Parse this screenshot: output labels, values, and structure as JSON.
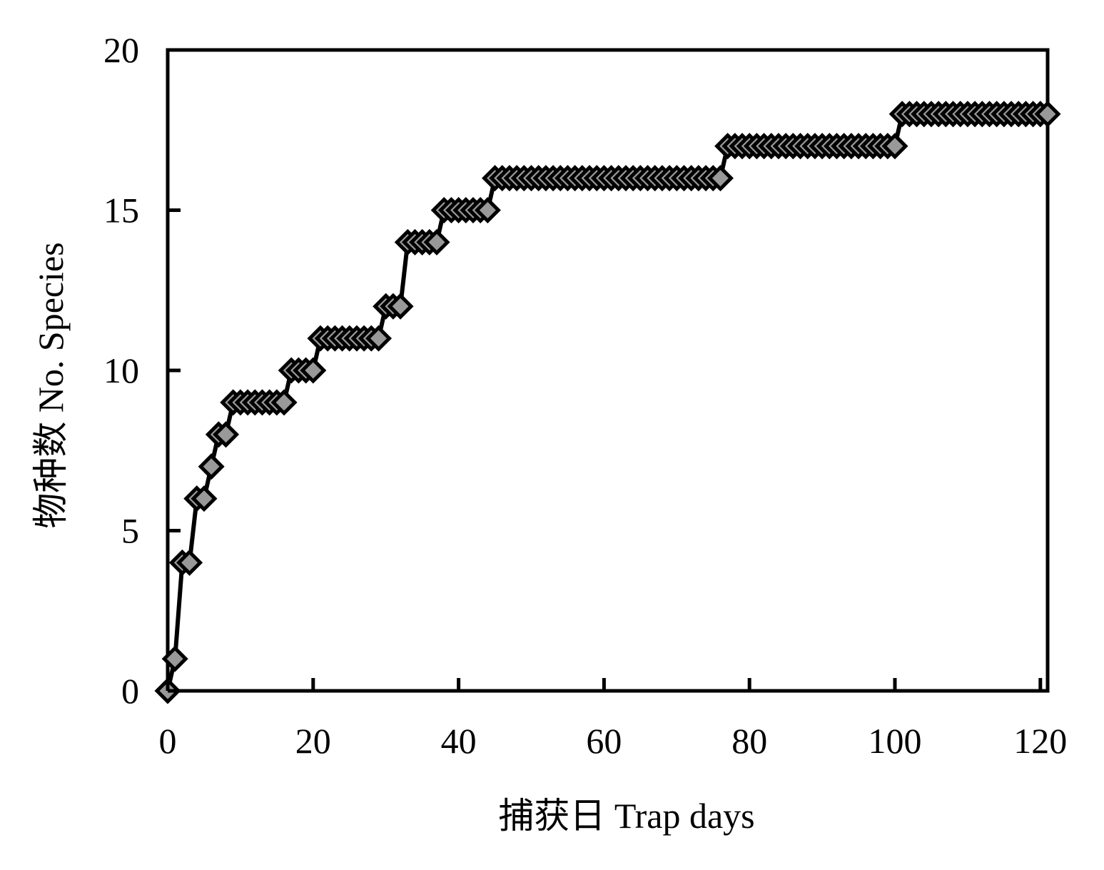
{
  "chart_data": {
    "type": "line",
    "title": "",
    "xlabel": "捕获日  Trap days",
    "ylabel": "物种数  No. Species",
    "xlim": [
      0,
      121
    ],
    "ylim": [
      0,
      20
    ],
    "xticks": [
      0,
      20,
      40,
      60,
      80,
      100,
      120
    ],
    "yticks": [
      0,
      5,
      10,
      15,
      20
    ],
    "xtick_labels": [
      "0",
      "20",
      "40",
      "60",
      "80",
      "100",
      "120"
    ],
    "ytick_labels": [
      "0",
      "5",
      "10",
      "15",
      "20"
    ],
    "grid": false,
    "legend": "none",
    "marker": "diamond",
    "line_color": "#000000",
    "marker_fill": "#999999",
    "marker_edge": "#000000",
    "series": [
      {
        "x": [
          0,
          1,
          2,
          3,
          4,
          5,
          6,
          7,
          8,
          9,
          10,
          11,
          12,
          13,
          14,
          15,
          16,
          17,
          18,
          19,
          20,
          21,
          22,
          23,
          24,
          25,
          26,
          27,
          28,
          29,
          30,
          31,
          32,
          33,
          34,
          35,
          36,
          37,
          38,
          39,
          40,
          41,
          42,
          43,
          44,
          45,
          46,
          47,
          48,
          49,
          50,
          51,
          52,
          53,
          54,
          55,
          56,
          57,
          58,
          59,
          60,
          61,
          62,
          63,
          64,
          65,
          66,
          67,
          68,
          69,
          70,
          71,
          72,
          73,
          74,
          75,
          76,
          77,
          78,
          79,
          80,
          81,
          82,
          83,
          84,
          85,
          86,
          87,
          88,
          89,
          90,
          91,
          92,
          93,
          94,
          95,
          96,
          97,
          98,
          99,
          100,
          101,
          102,
          103,
          104,
          105,
          106,
          107,
          108,
          109,
          110,
          111,
          112,
          113,
          114,
          115,
          116,
          117,
          118,
          119,
          120,
          121
        ],
        "y": [
          0,
          1,
          4,
          4,
          6,
          6,
          7,
          8,
          8,
          9,
          9,
          9,
          9,
          9,
          9,
          9,
          9,
          10,
          10,
          10,
          10,
          11,
          11,
          11,
          11,
          11,
          11,
          11,
          11,
          11,
          12,
          12,
          12,
          14,
          14,
          14,
          14,
          14,
          15,
          15,
          15,
          15,
          15,
          15,
          15,
          16,
          16,
          16,
          16,
          16,
          16,
          16,
          16,
          16,
          16,
          16,
          16,
          16,
          16,
          16,
          16,
          16,
          16,
          16,
          16,
          16,
          16,
          16,
          16,
          16,
          16,
          16,
          16,
          16,
          16,
          16,
          16,
          17,
          17,
          17,
          17,
          17,
          17,
          17,
          17,
          17,
          17,
          17,
          17,
          17,
          17,
          17,
          17,
          17,
          17,
          17,
          17,
          17,
          17,
          17,
          17,
          18,
          18,
          18,
          18,
          18,
          18,
          18,
          18,
          18,
          18,
          18,
          18,
          18,
          18,
          18,
          18,
          18,
          18,
          18,
          18,
          18
        ]
      }
    ]
  }
}
